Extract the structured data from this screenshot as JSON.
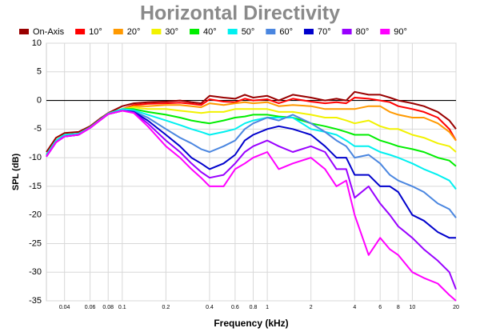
{
  "chart_data": {
    "type": "line",
    "title": "Horizontal Directivity",
    "xlabel": "Frequency (kHz)",
    "ylabel": "SPL (dB)",
    "xscale": "log",
    "grid": true,
    "legend": "top",
    "xlim": [
      0.03,
      20
    ],
    "ylim": [
      -35,
      10
    ],
    "xticks": [
      0.04,
      0.06,
      0.08,
      0.1,
      0.2,
      0.4,
      0.6,
      0.8,
      1,
      2,
      4,
      6,
      8,
      10,
      20
    ],
    "yticks": [
      -35,
      -30,
      -25,
      -20,
      -15,
      -10,
      -5,
      0,
      5,
      10
    ],
    "x": [
      0.03,
      0.035,
      0.04,
      0.05,
      0.06,
      0.07,
      0.08,
      0.1,
      0.12,
      0.15,
      0.2,
      0.25,
      0.3,
      0.35,
      0.4,
      0.5,
      0.6,
      0.7,
      0.8,
      1,
      1.2,
      1.5,
      2,
      2.5,
      3,
      3.5,
      4,
      5,
      6,
      7,
      8,
      10,
      12,
      15,
      18,
      20
    ],
    "series": [
      {
        "name": "On-Axis",
        "color": "#990000",
        "values": [
          -9,
          -6.5,
          -5.7,
          -5.5,
          -4.5,
          -3.2,
          -2.2,
          -1.0,
          -0.5,
          -0.3,
          -0.2,
          0,
          -0.3,
          -0.5,
          0.8,
          0.5,
          0.3,
          1,
          0.5,
          0.8,
          0,
          1,
          0.5,
          0,
          0.3,
          0,
          1.5,
          1,
          1,
          0.5,
          0,
          -0.5,
          -1,
          -2,
          -3.5,
          -5
        ]
      },
      {
        "name": "10°",
        "color": "#ff0000",
        "values": [
          -9.5,
          -7,
          -6,
          -5.8,
          -4.7,
          -3.4,
          -2.3,
          -1.5,
          -0.8,
          -0.6,
          -0.5,
          -0.4,
          -0.6,
          -0.8,
          0.2,
          -0.2,
          -0.3,
          0.3,
          0,
          0.2,
          -0.5,
          0.3,
          -0.2,
          -0.5,
          -0.3,
          -0.5,
          0.5,
          0.3,
          0,
          -0.3,
          -1,
          -1.5,
          -2,
          -3,
          -5,
          -7
        ]
      },
      {
        "name": "20°",
        "color": "#ff9900",
        "values": [
          -9.5,
          -7,
          -6,
          -5.8,
          -4.7,
          -3.4,
          -2.3,
          -1.5,
          -1,
          -1,
          -0.8,
          -0.8,
          -1,
          -1.2,
          -0.5,
          -0.8,
          -0.5,
          -0.3,
          -0.5,
          -0.3,
          -1,
          -0.8,
          -1,
          -1.5,
          -1.5,
          -1.5,
          -1.5,
          -1,
          -1,
          -2,
          -2.5,
          -3,
          -3,
          -4,
          -5.5,
          -7
        ]
      },
      {
        "name": "30°",
        "color": "#f2f200",
        "values": [
          -9.5,
          -7,
          -6,
          -5.8,
          -4.7,
          -3.4,
          -2.3,
          -1.5,
          -1.2,
          -1.5,
          -1.5,
          -1.8,
          -2,
          -2.2,
          -2,
          -2,
          -1.5,
          -1.5,
          -1.5,
          -1.5,
          -2,
          -2,
          -2.5,
          -3,
          -3,
          -3.5,
          -4,
          -3.5,
          -4.5,
          -5,
          -5,
          -6,
          -6.5,
          -7.5,
          -8,
          -9
        ]
      },
      {
        "name": "40°",
        "color": "#00ee00",
        "values": [
          -9.5,
          -7,
          -6,
          -5.8,
          -4.7,
          -3.4,
          -2.3,
          -1.5,
          -1.5,
          -2,
          -2.5,
          -3,
          -3.5,
          -3.8,
          -4,
          -3.5,
          -3,
          -2.8,
          -2.5,
          -2.5,
          -2.8,
          -3,
          -4,
          -4.5,
          -5,
          -5.5,
          -6,
          -6,
          -7,
          -7.5,
          -8,
          -8.5,
          -9,
          -10,
          -10.5,
          -11.5
        ]
      },
      {
        "name": "50°",
        "color": "#00f0f0",
        "values": [
          -9.5,
          -7,
          -6,
          -5.8,
          -4.7,
          -3.4,
          -2.3,
          -1.5,
          -1.7,
          -2.5,
          -3.5,
          -4.3,
          -5,
          -5.5,
          -6,
          -5.5,
          -5,
          -4,
          -3.5,
          -3,
          -3,
          -3,
          -5,
          -5.5,
          -6,
          -7,
          -8,
          -8,
          -9,
          -9.5,
          -10,
          -11,
          -12,
          -13,
          -14,
          -15.5
        ]
      },
      {
        "name": "60°",
        "color": "#4a86e0",
        "values": [
          -9.8,
          -7.3,
          -6.3,
          -6,
          -4.8,
          -3.5,
          -2.4,
          -1.8,
          -1.9,
          -3,
          -5,
          -6.5,
          -7.5,
          -8.5,
          -9,
          -8,
          -7,
          -5,
          -4,
          -3,
          -3.5,
          -2.5,
          -4,
          -5.5,
          -7,
          -8,
          -10,
          -9.5,
          -11,
          -13,
          -14,
          -15,
          -16,
          -18,
          -19,
          -20.5
        ]
      },
      {
        "name": "70°",
        "color": "#0000cc",
        "values": [
          -9.8,
          -7.3,
          -6.3,
          -6,
          -4.8,
          -3.5,
          -2.4,
          -1.8,
          -2,
          -3.5,
          -6,
          -8,
          -10,
          -11,
          -12,
          -11,
          -9.5,
          -7,
          -6,
          -5,
          -4.5,
          -5,
          -6,
          -8,
          -10,
          -10,
          -13,
          -13,
          -15,
          -15,
          -16,
          -20,
          -21,
          -23,
          -24,
          -24
        ]
      },
      {
        "name": "80°",
        "color": "#9900ff",
        "values": [
          -9.8,
          -7.3,
          -6.3,
          -6,
          -4.8,
          -3.5,
          -2.4,
          -1.8,
          -2.1,
          -4,
          -7,
          -9,
          -11,
          -12.5,
          -13.5,
          -13,
          -11,
          -9,
          -8,
          -7,
          -8,
          -9,
          -8,
          -9,
          -12,
          -12,
          -17,
          -15,
          -18,
          -20,
          -22,
          -24,
          -26,
          -28,
          -30,
          -33
        ]
      },
      {
        "name": "90°",
        "color": "#ff00ff",
        "values": [
          -9.8,
          -7.3,
          -6.3,
          -6,
          -4.8,
          -3.5,
          -2.4,
          -1.8,
          -2.2,
          -4.5,
          -8,
          -10,
          -12,
          -13.5,
          -15,
          -15,
          -12,
          -11,
          -10,
          -9,
          -12,
          -11,
          -10,
          -12,
          -15,
          -14,
          -20,
          -27,
          -24,
          -26,
          -27,
          -30,
          -31,
          -32,
          -34,
          -35
        ]
      }
    ]
  }
}
